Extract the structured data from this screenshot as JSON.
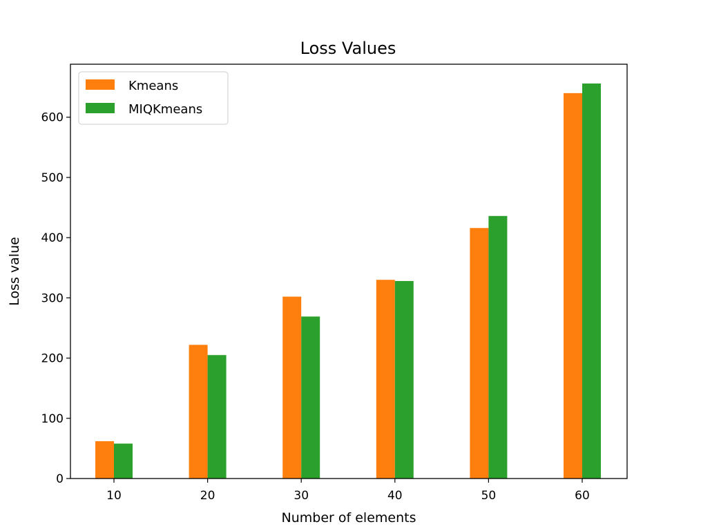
{
  "chart_data": {
    "type": "bar",
    "title": "Loss Values",
    "xlabel": "Number of elements",
    "ylabel": "Loss value",
    "categories": [
      "10",
      "20",
      "30",
      "40",
      "50",
      "60"
    ],
    "series": [
      {
        "name": "Kmeans",
        "color": "#ff7f0e",
        "values": [
          62,
          222,
          302,
          330,
          416,
          640
        ]
      },
      {
        "name": "MIQKmeans",
        "color": "#2ca02c",
        "values": [
          58,
          205,
          269,
          328,
          436,
          656
        ]
      }
    ],
    "yticks": [
      0,
      100,
      200,
      300,
      400,
      500,
      600
    ],
    "ylim": [
      0,
      688
    ],
    "grid": false,
    "legend_position": "top-left"
  }
}
